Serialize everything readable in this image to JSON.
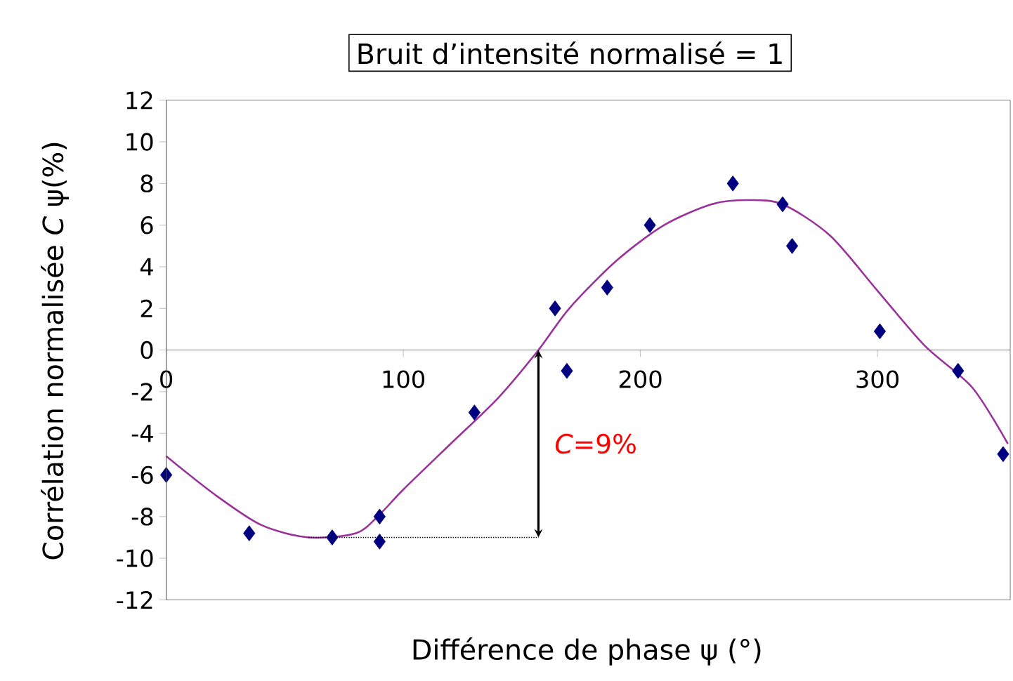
{
  "chart_data": {
    "type": "scatter",
    "title": "Bruit d’intensité normalisé = 1",
    "xlabel": "Différence de phase ψ (°)",
    "ylabel": "Corrélation normalisée *C* ψ(%)",
    "xlim": [
      0,
      356
    ],
    "ylim": [
      -12,
      12
    ],
    "xticks": [
      0,
      100,
      200,
      300
    ],
    "yticks": [
      -12,
      -10,
      -8,
      -6,
      -4,
      -2,
      0,
      2,
      4,
      6,
      8,
      10,
      12
    ],
    "grid": false,
    "series": [
      {
        "marker": "diamond",
        "color": "#000080",
        "x": [
          0,
          35,
          70,
          90,
          90,
          130,
          164,
          169,
          186,
          204,
          239,
          260,
          264,
          301,
          334,
          353
        ],
        "values": [
          -6,
          -8.8,
          -9,
          -8,
          -9.2,
          -3,
          2,
          -1,
          3,
          6,
          8,
          7,
          5,
          0.9,
          -1,
          -5
        ]
      },
      {
        "type": "line",
        "color": "#993399",
        "x": [
          0,
          20,
          40,
          60,
          80,
          90,
          100,
          120,
          140,
          157,
          170,
          190,
          210,
          230,
          245,
          260,
          280,
          300,
          320,
          340,
          355
        ],
        "values": [
          -5.1,
          -6.9,
          -8.4,
          -9,
          -8.8,
          -7.9,
          -6.7,
          -4.5,
          -2.3,
          0,
          2,
          4.3,
          6,
          7,
          7.2,
          7,
          5.5,
          2.85,
          0.2,
          -1.8,
          -4.5
        ]
      }
    ],
    "annotations": [
      "*C*=9%"
    ]
  }
}
